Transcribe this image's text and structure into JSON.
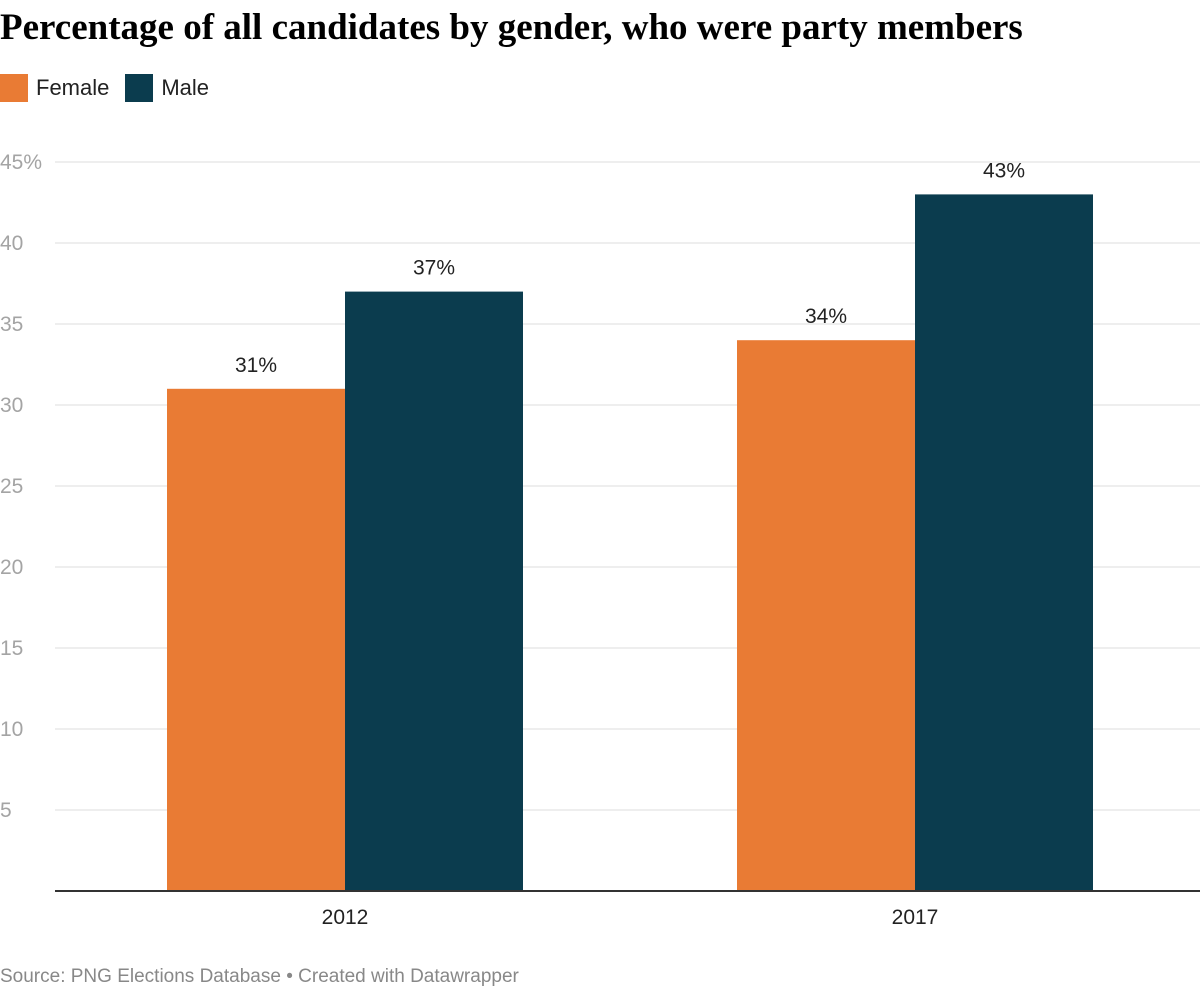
{
  "title": "Percentage of all candidates by gender, who were party members",
  "colors": {
    "female": "#e97b34",
    "male": "#0b3c4e",
    "grid": "#dddddd",
    "axis": "#333333"
  },
  "footer": {
    "source": "Source: PNG Elections Database",
    "separator": "•",
    "credit": "Created with Datawrapper"
  },
  "chart_data": {
    "type": "bar",
    "categories": [
      "2012",
      "2017"
    ],
    "series": [
      {
        "name": "Female",
        "values": [
          31,
          34
        ],
        "labels": [
          "31%",
          "34%"
        ]
      },
      {
        "name": "Male",
        "values": [
          37,
          43
        ],
        "labels": [
          "37%",
          "43%"
        ]
      }
    ],
    "ylim": [
      0,
      45
    ],
    "yticks": [
      5,
      10,
      15,
      20,
      25,
      30,
      35,
      40,
      45
    ],
    "ytick_labels": [
      "5",
      "10",
      "15",
      "20",
      "25",
      "30",
      "35",
      "40",
      "45%"
    ],
    "grid": true,
    "legend": "top-left",
    "xlabel": "",
    "ylabel": ""
  }
}
